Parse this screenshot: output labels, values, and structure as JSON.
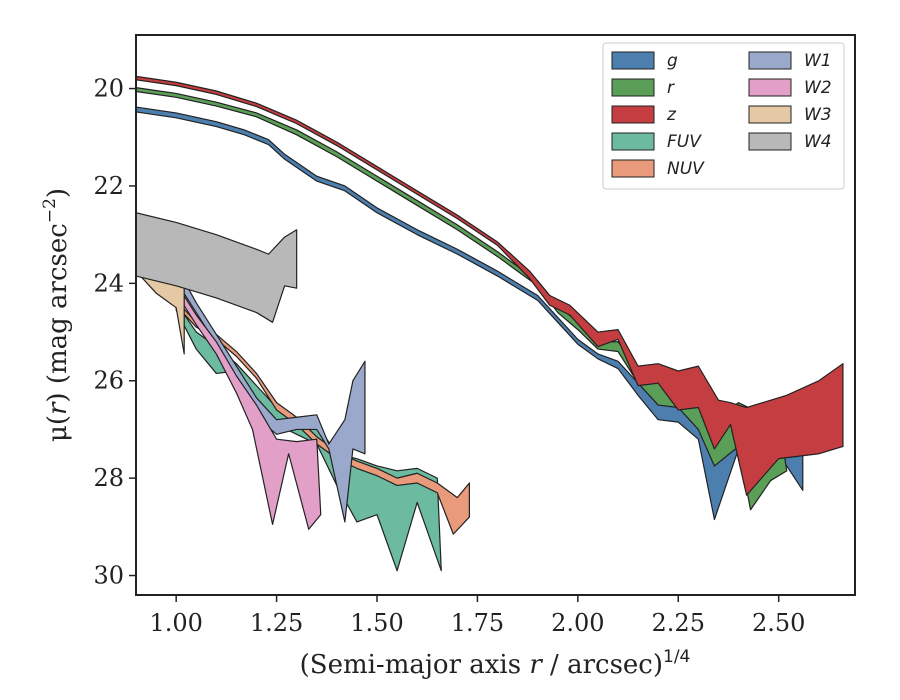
{
  "chart_data": {
    "type": "area",
    "title": "",
    "xlabel": "(Semi-major axis r / arcsec)^1/4",
    "xlabel_parts": {
      "main": "(Semi-major axis ",
      "var": "r",
      "tail": " / arcsec)",
      "sup": "1/4"
    },
    "ylabel": "μ(r) (mag arcsec^−2)",
    "ylabel_parts": {
      "main": "μ(",
      "var": "r",
      "mid": ") (mag arcsec",
      "sup": "−2",
      "tail": ")"
    },
    "xlim": [
      0.9,
      2.69
    ],
    "ylim": [
      30.4,
      18.9
    ],
    "y_inverted": true,
    "x_ticks": [
      1.0,
      1.25,
      1.5,
      1.75,
      2.0,
      2.25,
      2.5
    ],
    "x_tick_labels": [
      "1.00",
      "1.25",
      "1.50",
      "1.75",
      "2.00",
      "2.25",
      "2.50"
    ],
    "y_ticks": [
      20,
      22,
      24,
      26,
      28,
      30
    ],
    "y_tick_labels": [
      "20",
      "22",
      "24",
      "26",
      "28",
      "30"
    ],
    "grid": false,
    "legend_position": "top-right",
    "series": [
      {
        "name": "g",
        "color": "#4c7eae",
        "upper": [
          [
            0.9,
            20.38
          ],
          [
            1.0,
            20.5
          ],
          [
            1.1,
            20.68
          ],
          [
            1.17,
            20.85
          ],
          [
            1.23,
            21.05
          ],
          [
            1.27,
            21.35
          ],
          [
            1.35,
            21.8
          ],
          [
            1.42,
            22.0
          ],
          [
            1.5,
            22.45
          ],
          [
            1.6,
            22.9
          ],
          [
            1.7,
            23.3
          ],
          [
            1.8,
            23.75
          ],
          [
            1.9,
            24.25
          ],
          [
            1.95,
            24.7
          ],
          [
            2.0,
            25.15
          ],
          [
            2.05,
            25.45
          ],
          [
            2.1,
            25.6
          ],
          [
            2.15,
            26.05
          ],
          [
            2.2,
            26.3
          ],
          [
            2.3,
            26.75
          ],
          [
            2.34,
            27.05
          ],
          [
            2.4,
            26.75
          ],
          [
            2.45,
            26.95
          ],
          [
            2.5,
            27.3
          ],
          [
            2.56,
            27.35
          ]
        ],
        "lower": [
          [
            0.9,
            20.48
          ],
          [
            1.0,
            20.6
          ],
          [
            1.1,
            20.78
          ],
          [
            1.17,
            20.95
          ],
          [
            1.23,
            21.15
          ],
          [
            1.27,
            21.45
          ],
          [
            1.35,
            21.9
          ],
          [
            1.42,
            22.1
          ],
          [
            1.5,
            22.55
          ],
          [
            1.6,
            23.0
          ],
          [
            1.7,
            23.4
          ],
          [
            1.8,
            23.85
          ],
          [
            1.9,
            24.35
          ],
          [
            1.95,
            24.8
          ],
          [
            2.0,
            25.25
          ],
          [
            2.05,
            25.55
          ],
          [
            2.1,
            25.75
          ],
          [
            2.15,
            26.3
          ],
          [
            2.2,
            26.8
          ],
          [
            2.25,
            26.85
          ],
          [
            2.3,
            27.2
          ],
          [
            2.34,
            28.85
          ],
          [
            2.4,
            27.4
          ],
          [
            2.45,
            27.5
          ],
          [
            2.5,
            27.5
          ],
          [
            2.56,
            28.25
          ]
        ]
      },
      {
        "name": "r",
        "color": "#5b9e57",
        "upper": [
          [
            0.9,
            19.98
          ],
          [
            1.0,
            20.1
          ],
          [
            1.1,
            20.28
          ],
          [
            1.2,
            20.5
          ],
          [
            1.3,
            20.85
          ],
          [
            1.4,
            21.3
          ],
          [
            1.5,
            21.8
          ],
          [
            1.6,
            22.3
          ],
          [
            1.7,
            22.8
          ],
          [
            1.8,
            23.35
          ],
          [
            1.9,
            23.95
          ],
          [
            1.95,
            24.45
          ],
          [
            2.0,
            24.8
          ],
          [
            2.05,
            25.2
          ],
          [
            2.1,
            25.2
          ],
          [
            2.15,
            25.75
          ],
          [
            2.2,
            26.05
          ],
          [
            2.3,
            26.45
          ],
          [
            2.34,
            26.8
          ],
          [
            2.4,
            26.45
          ],
          [
            2.45,
            26.65
          ],
          [
            2.5,
            26.75
          ]
        ],
        "lower": [
          [
            0.9,
            20.06
          ],
          [
            1.0,
            20.18
          ],
          [
            1.1,
            20.36
          ],
          [
            1.2,
            20.58
          ],
          [
            1.3,
            20.95
          ],
          [
            1.4,
            21.4
          ],
          [
            1.5,
            21.9
          ],
          [
            1.6,
            22.4
          ],
          [
            1.7,
            22.9
          ],
          [
            1.8,
            23.45
          ],
          [
            1.9,
            24.05
          ],
          [
            1.95,
            24.6
          ],
          [
            2.0,
            24.95
          ],
          [
            2.05,
            25.35
          ],
          [
            2.1,
            25.4
          ],
          [
            2.15,
            26.05
          ],
          [
            2.2,
            26.5
          ],
          [
            2.25,
            26.55
          ],
          [
            2.3,
            27.0
          ],
          [
            2.34,
            27.75
          ],
          [
            2.4,
            27.35
          ],
          [
            2.43,
            28.65
          ],
          [
            2.48,
            28.05
          ],
          [
            2.52,
            27.85
          ]
        ]
      },
      {
        "name": "z",
        "color": "#c43d41",
        "upper": [
          [
            0.9,
            19.75
          ],
          [
            1.0,
            19.87
          ],
          [
            1.1,
            20.05
          ],
          [
            1.2,
            20.3
          ],
          [
            1.3,
            20.65
          ],
          [
            1.4,
            21.1
          ],
          [
            1.5,
            21.6
          ],
          [
            1.6,
            22.1
          ],
          [
            1.7,
            22.6
          ],
          [
            1.8,
            23.15
          ],
          [
            1.88,
            23.75
          ],
          [
            1.93,
            24.25
          ],
          [
            1.98,
            24.45
          ],
          [
            2.05,
            25.0
          ],
          [
            2.1,
            24.95
          ],
          [
            2.15,
            25.7
          ],
          [
            2.2,
            25.65
          ],
          [
            2.25,
            25.8
          ],
          [
            2.3,
            25.7
          ],
          [
            2.35,
            26.4
          ],
          [
            2.38,
            26.45
          ],
          [
            2.42,
            26.55
          ],
          [
            2.52,
            26.3
          ],
          [
            2.6,
            26.0
          ],
          [
            2.66,
            25.65
          ]
        ],
        "lower": [
          [
            0.9,
            19.82
          ],
          [
            1.0,
            19.94
          ],
          [
            1.1,
            20.12
          ],
          [
            1.2,
            20.37
          ],
          [
            1.3,
            20.72
          ],
          [
            1.4,
            21.17
          ],
          [
            1.5,
            21.67
          ],
          [
            1.6,
            22.17
          ],
          [
            1.7,
            22.67
          ],
          [
            1.8,
            23.22
          ],
          [
            1.88,
            23.9
          ],
          [
            1.93,
            24.45
          ],
          [
            1.98,
            24.65
          ],
          [
            2.05,
            25.3
          ],
          [
            2.1,
            25.15
          ],
          [
            2.15,
            26.1
          ],
          [
            2.2,
            26.05
          ],
          [
            2.25,
            26.6
          ],
          [
            2.3,
            26.55
          ],
          [
            2.34,
            27.4
          ],
          [
            2.38,
            26.9
          ],
          [
            2.42,
            28.35
          ],
          [
            2.5,
            27.6
          ],
          [
            2.6,
            27.5
          ],
          [
            2.66,
            27.35
          ]
        ]
      },
      {
        "name": "FUV",
        "color": "#6cbaa0",
        "upper": [
          [
            1.0,
            24.4
          ],
          [
            1.05,
            25.0
          ],
          [
            1.1,
            25.3
          ],
          [
            1.15,
            25.65
          ],
          [
            1.2,
            26.1
          ],
          [
            1.25,
            26.55
          ],
          [
            1.3,
            26.75
          ],
          [
            1.35,
            26.9
          ],
          [
            1.4,
            27.5
          ],
          [
            1.45,
            27.6
          ],
          [
            1.5,
            27.75
          ],
          [
            1.55,
            27.85
          ],
          [
            1.6,
            27.8
          ],
          [
            1.65,
            28.0
          ]
        ],
        "lower": [
          [
            1.0,
            24.55
          ],
          [
            1.05,
            25.35
          ],
          [
            1.1,
            25.85
          ],
          [
            1.15,
            25.8
          ],
          [
            1.2,
            26.4
          ],
          [
            1.25,
            26.9
          ],
          [
            1.3,
            27.1
          ],
          [
            1.35,
            27.3
          ],
          [
            1.4,
            28.15
          ],
          [
            1.45,
            28.9
          ],
          [
            1.5,
            28.75
          ],
          [
            1.55,
            29.9
          ],
          [
            1.6,
            28.5
          ],
          [
            1.66,
            29.9
          ]
        ]
      },
      {
        "name": "NUV",
        "color": "#e89a7a",
        "upper": [
          [
            1.0,
            24.35
          ],
          [
            1.05,
            24.8
          ],
          [
            1.1,
            25.05
          ],
          [
            1.15,
            25.4
          ],
          [
            1.2,
            25.85
          ],
          [
            1.25,
            26.45
          ],
          [
            1.3,
            26.75
          ],
          [
            1.35,
            27.15
          ],
          [
            1.4,
            27.45
          ],
          [
            1.45,
            27.65
          ],
          [
            1.5,
            27.8
          ],
          [
            1.55,
            28.0
          ],
          [
            1.6,
            27.9
          ],
          [
            1.65,
            28.1
          ],
          [
            1.7,
            28.4
          ],
          [
            1.73,
            28.1
          ]
        ],
        "lower": [
          [
            1.0,
            24.45
          ],
          [
            1.05,
            24.9
          ],
          [
            1.1,
            25.15
          ],
          [
            1.15,
            25.5
          ],
          [
            1.2,
            25.95
          ],
          [
            1.25,
            26.6
          ],
          [
            1.3,
            26.9
          ],
          [
            1.35,
            27.3
          ],
          [
            1.4,
            27.6
          ],
          [
            1.45,
            27.8
          ],
          [
            1.5,
            27.95
          ],
          [
            1.55,
            28.15
          ],
          [
            1.6,
            28.1
          ],
          [
            1.65,
            28.3
          ],
          [
            1.69,
            29.15
          ],
          [
            1.73,
            28.8
          ]
        ]
      },
      {
        "name": "W1",
        "color": "#9aa9cb",
        "upper": [
          [
            0.9,
            22.8
          ],
          [
            0.95,
            23.2
          ],
          [
            1.0,
            23.65
          ],
          [
            1.05,
            24.4
          ],
          [
            1.1,
            25.05
          ],
          [
            1.15,
            25.7
          ],
          [
            1.2,
            26.35
          ],
          [
            1.25,
            26.8
          ],
          [
            1.3,
            26.75
          ],
          [
            1.35,
            26.7
          ],
          [
            1.38,
            27.3
          ],
          [
            1.42,
            26.8
          ],
          [
            1.44,
            26.0
          ],
          [
            1.47,
            25.6
          ]
        ],
        "lower": [
          [
            0.9,
            23.0
          ],
          [
            0.95,
            23.45
          ],
          [
            1.0,
            23.95
          ],
          [
            1.05,
            24.6
          ],
          [
            1.1,
            25.25
          ],
          [
            1.15,
            25.95
          ],
          [
            1.2,
            26.75
          ],
          [
            1.25,
            27.1
          ],
          [
            1.3,
            27.0
          ],
          [
            1.35,
            27.0
          ],
          [
            1.38,
            27.4
          ],
          [
            1.42,
            28.9
          ],
          [
            1.44,
            27.4
          ],
          [
            1.47,
            27.5
          ]
        ]
      },
      {
        "name": "W2",
        "color": "#e2a0c8",
        "upper": [
          [
            0.9,
            23.3
          ],
          [
            0.95,
            23.55
          ],
          [
            1.0,
            24.0
          ],
          [
            1.05,
            24.65
          ],
          [
            1.1,
            25.2
          ],
          [
            1.15,
            25.9
          ],
          [
            1.2,
            26.5
          ],
          [
            1.25,
            27.2
          ],
          [
            1.3,
            27.25
          ],
          [
            1.35,
            27.2
          ]
        ],
        "lower": [
          [
            0.9,
            23.45
          ],
          [
            0.95,
            23.75
          ],
          [
            1.0,
            24.2
          ],
          [
            1.05,
            24.85
          ],
          [
            1.1,
            25.45
          ],
          [
            1.15,
            26.25
          ],
          [
            1.19,
            27.0
          ],
          [
            1.24,
            28.95
          ],
          [
            1.28,
            27.5
          ],
          [
            1.33,
            29.05
          ],
          [
            1.36,
            28.75
          ]
        ]
      },
      {
        "name": "W3",
        "color": "#e5c8a4",
        "upper": [
          [
            0.9,
            23.35
          ],
          [
            0.95,
            23.55
          ],
          [
            1.0,
            23.8
          ],
          [
            1.02,
            24.1
          ]
        ],
        "lower": [
          [
            0.9,
            23.75
          ],
          [
            0.95,
            24.2
          ],
          [
            1.0,
            24.5
          ],
          [
            1.02,
            25.45
          ]
        ]
      },
      {
        "name": "W4",
        "color": "#b8b8b8",
        "upper": [
          [
            0.9,
            22.55
          ],
          [
            1.0,
            22.75
          ],
          [
            1.1,
            23.0
          ],
          [
            1.2,
            23.3
          ],
          [
            1.23,
            23.4
          ],
          [
            1.27,
            23.05
          ],
          [
            1.3,
            22.9
          ]
        ],
        "lower": [
          [
            0.9,
            23.85
          ],
          [
            1.0,
            24.05
          ],
          [
            1.1,
            24.3
          ],
          [
            1.2,
            24.6
          ],
          [
            1.24,
            24.8
          ],
          [
            1.27,
            24.05
          ],
          [
            1.3,
            24.1
          ]
        ]
      }
    ],
    "legend_columns": [
      [
        "g",
        "r",
        "z",
        "FUV",
        "NUV"
      ],
      [
        "W1",
        "W2",
        "W3",
        "W4"
      ]
    ]
  }
}
